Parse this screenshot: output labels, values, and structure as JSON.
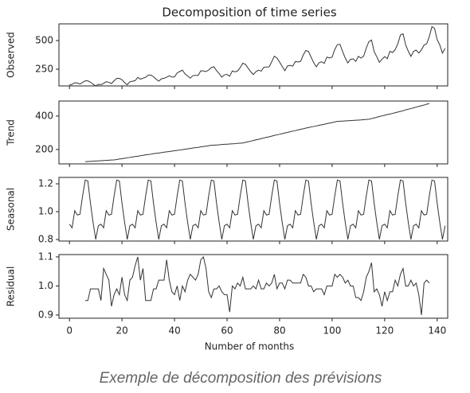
{
  "chart_data": {
    "type": "line",
    "title": "Decomposition of time series",
    "xlabel": "Number of months",
    "x": [
      0,
      1,
      2,
      3,
      4,
      5,
      6,
      7,
      8,
      9,
      10,
      11,
      12,
      13,
      14,
      15,
      16,
      17,
      18,
      19,
      20,
      21,
      22,
      23,
      24,
      25,
      26,
      27,
      28,
      29,
      30,
      31,
      32,
      33,
      34,
      35,
      36,
      37,
      38,
      39,
      40,
      41,
      42,
      43,
      44,
      45,
      46,
      47,
      48,
      49,
      50,
      51,
      52,
      53,
      54,
      55,
      56,
      57,
      58,
      59,
      60,
      61,
      62,
      63,
      64,
      65,
      66,
      67,
      68,
      69,
      70,
      71,
      72,
      73,
      74,
      75,
      76,
      77,
      78,
      79,
      80,
      81,
      82,
      83,
      84,
      85,
      86,
      87,
      88,
      89,
      90,
      91,
      92,
      93,
      94,
      95,
      96,
      97,
      98,
      99,
      100,
      101,
      102,
      103,
      104,
      105,
      106,
      107,
      108,
      109,
      110,
      111,
      112,
      113,
      114,
      115,
      116,
      117,
      118,
      119,
      120,
      121,
      122,
      123,
      124,
      125,
      126,
      127,
      128,
      129,
      130,
      131,
      132,
      133,
      134,
      135,
      136,
      137,
      138,
      139,
      140,
      141,
      142,
      143
    ],
    "xlim": [
      -4,
      144
    ],
    "xticks": [
      0,
      20,
      40,
      60,
      80,
      100,
      120,
      140
    ],
    "panels": [
      {
        "ylabel": "Observed",
        "ylim": [
          104,
          646
        ],
        "yticks": [
          250,
          500
        ],
        "color": "#333333",
        "values": [
          112,
          118,
          132,
          129,
          121,
          135,
          148,
          148,
          136,
          119,
          104,
          118,
          115,
          126,
          141,
          135,
          125,
          149,
          170,
          170,
          158,
          133,
          114,
          140,
          145,
          150,
          178,
          163,
          172,
          178,
          199,
          199,
          184,
          162,
          146,
          166,
          171,
          180,
          193,
          181,
          183,
          218,
          230,
          242,
          209,
          191,
          172,
          194,
          196,
          196,
          236,
          235,
          229,
          243,
          264,
          272,
          237,
          211,
          180,
          201,
          204,
          188,
          235,
          227,
          234,
          264,
          302,
          293,
          259,
          229,
          203,
          229,
          242,
          233,
          267,
          269,
          270,
          315,
          364,
          347,
          312,
          274,
          237,
          278,
          284,
          277,
          317,
          313,
          318,
          374,
          413,
          405,
          355,
          306,
          271,
          306,
          315,
          301,
          356,
          348,
          355,
          422,
          465,
          467,
          404,
          347,
          305,
          336,
          340,
          318,
          362,
          348,
          363,
          435,
          491,
          505,
          404,
          359,
          310,
          337,
          360,
          342,
          406,
          396,
          420,
          472,
          548,
          559,
          463,
          407,
          362,
          405,
          417,
          391,
          419,
          461,
          472,
          535,
          622,
          606,
          508,
          461,
          390,
          432
        ]
      },
      {
        "ylabel": "Trend",
        "ylim": [
          114,
          490
        ],
        "yticks": [
          200,
          400
        ],
        "color": "#333333",
        "values": [
          null,
          null,
          null,
          null,
          null,
          null,
          127,
          128,
          129,
          130,
          131,
          132,
          133,
          134,
          135,
          136,
          137,
          138,
          140,
          143,
          145,
          148,
          150,
          153,
          155,
          158,
          160,
          163,
          165,
          168,
          170,
          172,
          175,
          177,
          179,
          181,
          184,
          186,
          188,
          190,
          193,
          195,
          197,
          199,
          202,
          204,
          206,
          209,
          211,
          213,
          216,
          218,
          220,
          223,
          225,
          226,
          227,
          228,
          230,
          231,
          232,
          233,
          234,
          235,
          237,
          238,
          239,
          243,
          246,
          250,
          254,
          258,
          261,
          265,
          269,
          273,
          276,
          280,
          284,
          288,
          291,
          295,
          299,
          302,
          306,
          310,
          313,
          317,
          321,
          324,
          328,
          331,
          335,
          338,
          341,
          345,
          348,
          351,
          355,
          358,
          361,
          365,
          368,
          369,
          370,
          371,
          372,
          373,
          374,
          375,
          376,
          377,
          379,
          380,
          381,
          385,
          389,
          393,
          397,
          401,
          405,
          409,
          412,
          416,
          420,
          424,
          428,
          432,
          437,
          441,
          445,
          449,
          454,
          458,
          462,
          466,
          471,
          475,
          null,
          null,
          null,
          null,
          null,
          null
        ]
      },
      {
        "ylabel": "Seasonal",
        "ylim": [
          0.789,
          1.246
        ],
        "yticks": [
          0.8,
          {
            "value": 1,
            "label": "1.0"
          },
          1.2
        ],
        "color": "#333333",
        "values": [
          0.91,
          0.884,
          1.007,
          0.976,
          0.981,
          1.113,
          1.227,
          1.22,
          1.06,
          0.922,
          0.801,
          0.899,
          0.91,
          0.884,
          1.007,
          0.976,
          0.981,
          1.113,
          1.227,
          1.22,
          1.06,
          0.922,
          0.801,
          0.899,
          0.91,
          0.884,
          1.007,
          0.976,
          0.981,
          1.113,
          1.227,
          1.22,
          1.06,
          0.922,
          0.801,
          0.899,
          0.91,
          0.884,
          1.007,
          0.976,
          0.981,
          1.113,
          1.227,
          1.22,
          1.06,
          0.922,
          0.801,
          0.899,
          0.91,
          0.884,
          1.007,
          0.976,
          0.981,
          1.113,
          1.227,
          1.22,
          1.06,
          0.922,
          0.801,
          0.899,
          0.91,
          0.884,
          1.007,
          0.976,
          0.981,
          1.113,
          1.227,
          1.22,
          1.06,
          0.922,
          0.801,
          0.899,
          0.91,
          0.884,
          1.007,
          0.976,
          0.981,
          1.113,
          1.227,
          1.22,
          1.06,
          0.922,
          0.801,
          0.899,
          0.91,
          0.884,
          1.007,
          0.976,
          0.981,
          1.113,
          1.227,
          1.22,
          1.06,
          0.922,
          0.801,
          0.899,
          0.91,
          0.884,
          1.007,
          0.976,
          0.981,
          1.113,
          1.227,
          1.22,
          1.06,
          0.922,
          0.801,
          0.899,
          0.91,
          0.884,
          1.007,
          0.976,
          0.981,
          1.113,
          1.227,
          1.22,
          1.06,
          0.922,
          0.801,
          0.899,
          0.91,
          0.884,
          1.007,
          0.976,
          0.981,
          1.113,
          1.227,
          1.22,
          1.06,
          0.922,
          0.801,
          0.899,
          0.91,
          0.884,
          1.007,
          0.976,
          0.981,
          1.113,
          1.227,
          1.22,
          1.06,
          0.922,
          0.801,
          0.899
        ]
      },
      {
        "ylabel": "Residual",
        "ylim": [
          0.889,
          1.108
        ],
        "yticks": [
          0.9,
          {
            "value": 1,
            "label": "1.0"
          },
          1.1
        ],
        "color": "#333333",
        "values": [
          null,
          null,
          null,
          null,
          null,
          null,
          0.95,
          0.95,
          0.99,
          0.99,
          0.99,
          0.99,
          0.95,
          1.06,
          1.04,
          1.02,
          0.93,
          0.97,
          0.99,
          0.97,
          1.03,
          0.97,
          0.95,
          1.02,
          1.03,
          1.07,
          1.1,
          1.02,
          1.06,
          0.95,
          0.95,
          0.95,
          0.99,
          0.99,
          1.02,
          1.02,
          1.02,
          1.09,
          1.02,
          0.98,
          0.97,
          1.0,
          0.95,
          1.0,
          0.98,
          1.02,
          1.04,
          1.03,
          1.02,
          1.04,
          1.09,
          1.1,
          1.06,
          0.98,
          0.96,
          0.99,
          0.99,
          1.0,
          0.98,
          0.97,
          0.97,
          0.91,
          1.0,
          0.99,
          1.01,
          1.0,
          1.03,
          0.99,
          0.99,
          0.99,
          1.0,
          0.99,
          1.02,
          0.99,
          0.99,
          1.01,
          1.0,
          1.01,
          1.04,
          0.99,
          1.01,
          1.01,
          0.99,
          1.02,
          1.02,
          1.01,
          1.01,
          1.01,
          1.01,
          1.04,
          1.03,
          1.0,
          1.0,
          0.98,
          0.99,
          0.99,
          0.99,
          0.97,
          1.0,
          1.0,
          1.0,
          1.04,
          1.03,
          1.04,
          1.03,
          1.01,
          1.02,
          1.0,
          1.0,
          0.96,
          0.96,
          0.95,
          0.98,
          1.03,
          1.05,
          1.08,
          0.98,
          0.99,
          0.97,
          0.93,
          0.98,
          0.95,
          0.98,
          0.98,
          1.02,
          1.0,
          1.04,
          1.06,
          1.0,
          1.0,
          1.02,
          1.0,
          1.01,
          0.97,
          0.9,
          1.01,
          1.02,
          1.01,
          null,
          null,
          null,
          null,
          null,
          null
        ]
      }
    ]
  },
  "caption": "Exemple de décomposition des prévisions"
}
